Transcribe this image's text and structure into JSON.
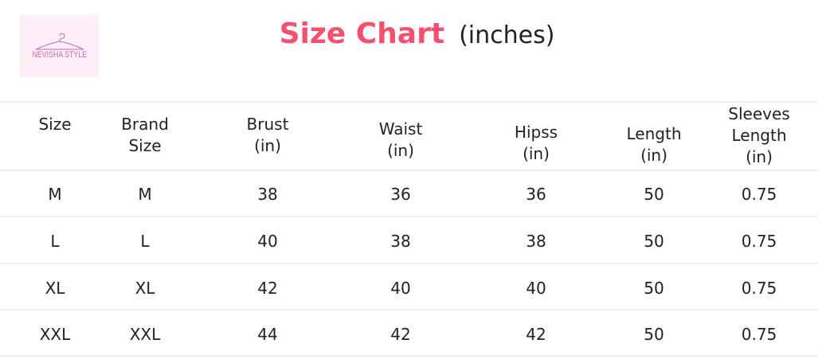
{
  "logo": {
    "text": "NEVISHA STYLE"
  },
  "title": {
    "main": "Size Chart",
    "sub": "(inches)"
  },
  "table": {
    "headers": [
      [
        "Size"
      ],
      [
        "Brand",
        "Size"
      ],
      [
        "Brust",
        "(in)"
      ],
      [
        "Waist",
        "(in)"
      ],
      [
        "Hipss",
        "(in)"
      ],
      [
        "Length",
        "(in)"
      ],
      [
        "Sleeves",
        "Length",
        "(in)"
      ]
    ],
    "rows": [
      [
        "M",
        "M",
        "38",
        "36",
        "36",
        "50",
        "0.75"
      ],
      [
        "L",
        "L",
        "40",
        "38",
        "38",
        "50",
        "0.75"
      ],
      [
        "XL",
        "XL",
        "42",
        "40",
        "40",
        "50",
        "0.75"
      ],
      [
        "XXL",
        "XXL",
        "44",
        "42",
        "42",
        "50",
        "0.75"
      ]
    ]
  }
}
